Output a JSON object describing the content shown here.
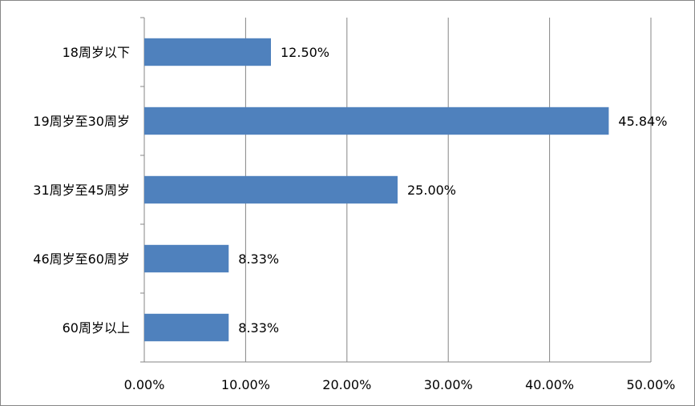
{
  "chart_data": {
    "type": "bar",
    "orientation": "horizontal",
    "title": "",
    "xlabel": "",
    "ylabel": "",
    "categories": [
      "18周岁以下",
      "19周岁至30周岁",
      "31周岁至45周岁",
      "46周岁至60周岁",
      "60周岁以上"
    ],
    "values": [
      12.5,
      45.84,
      25.0,
      8.33,
      8.33
    ],
    "data_labels": [
      "12.50%",
      "45.84%",
      "25.00%",
      "8.33%",
      "8.33%"
    ],
    "xlim": [
      0,
      50
    ],
    "x_ticks": [
      0,
      10,
      20,
      30,
      40,
      50
    ],
    "x_tick_labels": [
      "0.00%",
      "10.00%",
      "20.00%",
      "30.00%",
      "40.00%",
      "50.00%"
    ],
    "grid": "vertical",
    "legend": "none",
    "colors": {
      "bar": "#4f81bd",
      "grid": "#868686",
      "axis": "#868686"
    }
  }
}
